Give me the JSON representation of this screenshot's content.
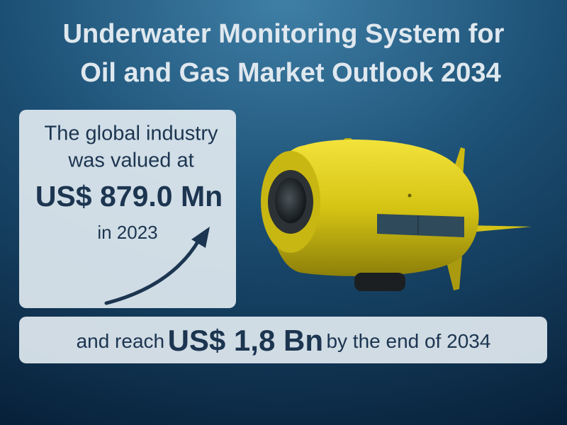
{
  "header": {
    "title_lines": [
      "Underwater Monitoring System for",
      "Oil and Gas Market Outlook 2034"
    ]
  },
  "valuation_box": {
    "lines": [
      "The global industry",
      "was valued at"
    ],
    "value": "US$ 879.0 Mn",
    "year_line": "in 2023"
  },
  "forecast_bar": {
    "prefix": "and reach",
    "value": "US$ 1,8 Bn",
    "suffix": "by the end of 2034"
  }
}
